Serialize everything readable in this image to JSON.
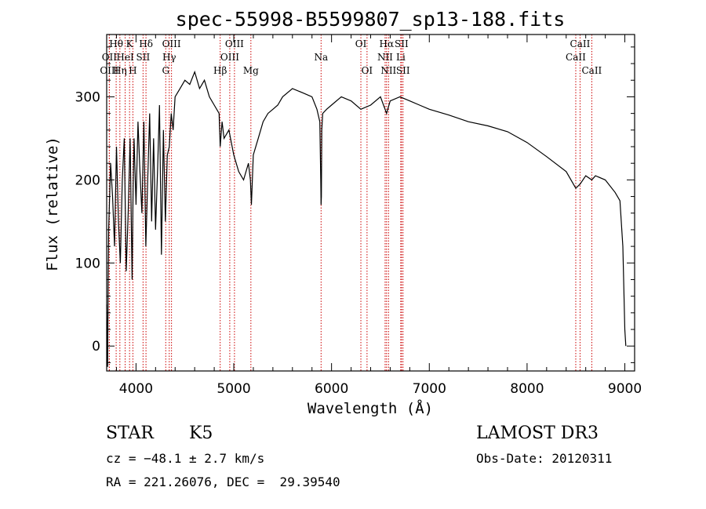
{
  "chart_data": {
    "type": "line",
    "title": "spec-55998-B5599807_sp13-188.fits",
    "xlabel": "Wavelength (Å)",
    "ylabel": "Flux (relative)",
    "xlim": [
      3700,
      9100
    ],
    "ylim": [
      -30,
      375
    ],
    "xticks": [
      4000,
      5000,
      6000,
      7000,
      8000,
      9000
    ],
    "yticks": [
      0,
      100,
      200,
      300
    ],
    "grid": false,
    "series": [
      {
        "x": [
          3700,
          3705,
          3710,
          3715,
          3720,
          3740,
          3760,
          3780,
          3800,
          3820,
          3840,
          3860,
          3880,
          3900,
          3920,
          3940,
          3960,
          3970,
          3980,
          4000,
          4020,
          4040,
          4060,
          4080,
          4100,
          4120,
          4140,
          4160,
          4180,
          4200,
          4220,
          4240,
          4260,
          4280,
          4300,
          4320,
          4340,
          4360,
          4380,
          4400,
          4450,
          4500,
          4550,
          4600,
          4650,
          4700,
          4750,
          4800,
          4850,
          4861,
          4880,
          4900,
          4950,
          5000,
          5050,
          5100,
          5150,
          5170,
          5180,
          5200,
          5250,
          5300,
          5350,
          5400,
          5450,
          5500,
          5600,
          5700,
          5800,
          5850,
          5880,
          5890,
          5893,
          5896,
          5900,
          5910,
          5950,
          6000,
          6100,
          6200,
          6300,
          6400,
          6500,
          6563,
          6600,
          6700,
          6800,
          6900,
          7000,
          7200,
          7400,
          7600,
          7800,
          8000,
          8200,
          8400,
          8498,
          8542,
          8600,
          8662,
          8700,
          8800,
          8900,
          8950,
          8980,
          9000,
          9010
        ],
        "y": [
          50,
          10,
          -25,
          80,
          140,
          220,
          180,
          120,
          240,
          150,
          100,
          200,
          250,
          90,
          160,
          250,
          80,
          190,
          250,
          170,
          270,
          210,
          160,
          270,
          120,
          200,
          280,
          150,
          250,
          140,
          210,
          290,
          110,
          260,
          150,
          230,
          240,
          280,
          260,
          300,
          310,
          320,
          315,
          330,
          310,
          320,
          300,
          290,
          280,
          240,
          270,
          250,
          260,
          230,
          210,
          200,
          220,
          200,
          170,
          230,
          250,
          270,
          280,
          285,
          290,
          300,
          310,
          305,
          300,
          285,
          270,
          200,
          170,
          180,
          260,
          280,
          285,
          290,
          300,
          295,
          285,
          290,
          300,
          280,
          295,
          300,
          295,
          290,
          285,
          278,
          270,
          265,
          258,
          245,
          228,
          210,
          190,
          195,
          205,
          200,
          205,
          200,
          185,
          175,
          120,
          20,
          0
        ]
      }
    ],
    "line_markers": [
      {
        "label": "Hθ",
        "wavelength": 3797,
        "row": 1
      },
      {
        "label": "OII",
        "wavelength": 3727,
        "row": 2
      },
      {
        "label": "OIII",
        "wavelength": 3727,
        "row": 3
      },
      {
        "label": "HeI",
        "wavelength": 3889,
        "row": 2
      },
      {
        "label": "Hη",
        "wavelength": 3835,
        "row": 3
      },
      {
        "label": "K",
        "wavelength": 3934,
        "row": 1
      },
      {
        "label": "H",
        "wavelength": 3968,
        "row": 3
      },
      {
        "label": "SII",
        "wavelength": 4072,
        "row": 2
      },
      {
        "label": "Hδ",
        "wavelength": 4102,
        "row": 1
      },
      {
        "label": "OIII",
        "wavelength": 4363,
        "row": 1
      },
      {
        "label": "Hγ",
        "wavelength": 4340,
        "row": 2
      },
      {
        "label": "G",
        "wavelength": 4304,
        "row": 3
      },
      {
        "label": "Hβ",
        "wavelength": 4861,
        "row": 3
      },
      {
        "label": "OIII",
        "wavelength": 5007,
        "row": 1
      },
      {
        "label": "OIII",
        "wavelength": 4959,
        "row": 2
      },
      {
        "label": "Mg",
        "wavelength": 5175,
        "row": 3
      },
      {
        "label": "Na",
        "wavelength": 5893,
        "row": 2
      },
      {
        "label": "OI",
        "wavelength": 6300,
        "row": 1
      },
      {
        "label": "OI",
        "wavelength": 6363,
        "row": 3
      },
      {
        "label": "Hα",
        "wavelength": 6563,
        "row": 1
      },
      {
        "label": "NII",
        "wavelength": 6548,
        "row": 2
      },
      {
        "label": "NII",
        "wavelength": 6583,
        "row": 3
      },
      {
        "label": "SII",
        "wavelength": 6716,
        "row": 1
      },
      {
        "label": "Li",
        "wavelength": 6708,
        "row": 2
      },
      {
        "label": "SII",
        "wavelength": 6731,
        "row": 3
      },
      {
        "label": "CaII",
        "wavelength": 8542,
        "row": 1
      },
      {
        "label": "CaII",
        "wavelength": 8498,
        "row": 2
      },
      {
        "label": "CaII",
        "wavelength": 8662,
        "row": 3
      }
    ],
    "colors": {
      "spectrum": "#000000",
      "line_markers": "#cc0000",
      "axes": "#000000"
    }
  },
  "info": {
    "object_type": "STAR",
    "subclass": "K5",
    "survey": "LAMOST DR3",
    "cz": "cz = −48.1 ± 2.7 km/s",
    "obs_date": "Obs-Date: 20120311",
    "coords": "RA = 221.26076, DEC =  29.39540"
  }
}
